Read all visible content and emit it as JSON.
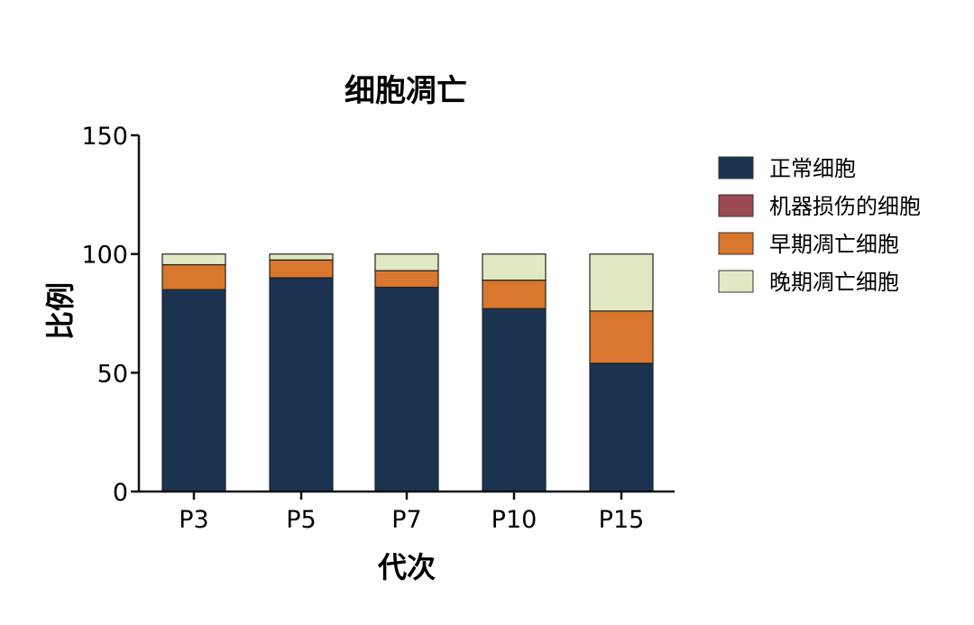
{
  "chart_data": {
    "type": "bar",
    "stacked": true,
    "title": "细胞凋亡",
    "xlabel": "代次",
    "ylabel": "比例",
    "ylim": [
      0,
      150
    ],
    "yticks": [
      0,
      50,
      100,
      150
    ],
    "categories": [
      "P3",
      "P5",
      "P7",
      "P10",
      "P15"
    ],
    "series": [
      {
        "name": "正常细胞",
        "color": "#1b3350",
        "values": [
          85,
          90,
          86,
          77,
          54
        ]
      },
      {
        "name": "机器损伤的细胞",
        "color": "#9c4a52",
        "values": [
          0,
          0,
          0,
          0,
          0
        ]
      },
      {
        "name": "早期凋亡细胞",
        "color": "#d8772d",
        "values": [
          10.5,
          7.5,
          7,
          12,
          22
        ]
      },
      {
        "name": "晚期凋亡细胞",
        "color": "#e1e8c4",
        "values": [
          4.5,
          2.5,
          7,
          11,
          24
        ]
      }
    ],
    "legend_position": "right",
    "grid": false
  }
}
